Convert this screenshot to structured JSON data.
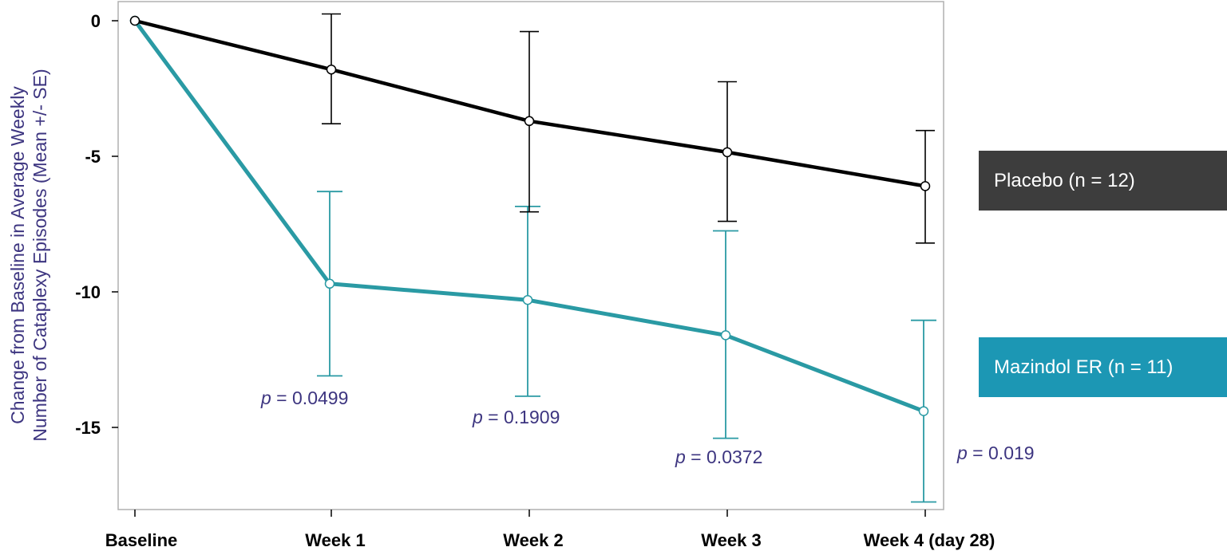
{
  "chart_data": {
    "type": "line",
    "categories": [
      "Baseline",
      "Week 1",
      "Week 2",
      "Week 3",
      "Week 4 (day 28)"
    ],
    "ylabel_lines": [
      "Change from Baseline in Average Weekly",
      "Number of Cataplexy Episodes (Mean +/- SE)"
    ],
    "ylim": [
      -18.2,
      0.7
    ],
    "yticks": [
      0,
      -5,
      -10,
      -15
    ],
    "ytick_labels": [
      "0",
      "-5",
      "-10",
      "-15"
    ],
    "grid": false,
    "legend_position": "right",
    "series": [
      {
        "name": "Placebo (n = 12)",
        "color": "#000000",
        "legend_bg": "#3d3d3d",
        "values": [
          0,
          -1.8,
          -3.7,
          -4.85,
          -6.1
        ],
        "err_low": [
          null,
          -3.8,
          -7.05,
          -7.4,
          -8.2
        ],
        "err_high": [
          null,
          0.25,
          -0.4,
          -2.25,
          -4.05
        ]
      },
      {
        "name": "Mazindol ER (n = 11)",
        "color": "#2a9aa4",
        "legend_bg": "#1c97b4",
        "values": [
          0,
          -9.7,
          -10.3,
          -11.6,
          -14.4
        ],
        "err_low": [
          null,
          -13.1,
          -13.85,
          -15.4,
          -17.75
        ],
        "err_high": [
          null,
          -6.3,
          -6.85,
          -7.75,
          -11.05
        ]
      }
    ],
    "annotations": [
      {
        "prefix": "p",
        "text": " = 0.0499"
      },
      {
        "prefix": "p",
        "text": " = 0.1909"
      },
      {
        "prefix": "p",
        "text": " = 0.0372"
      },
      {
        "prefix": "p",
        "text": " = 0.019"
      }
    ]
  }
}
